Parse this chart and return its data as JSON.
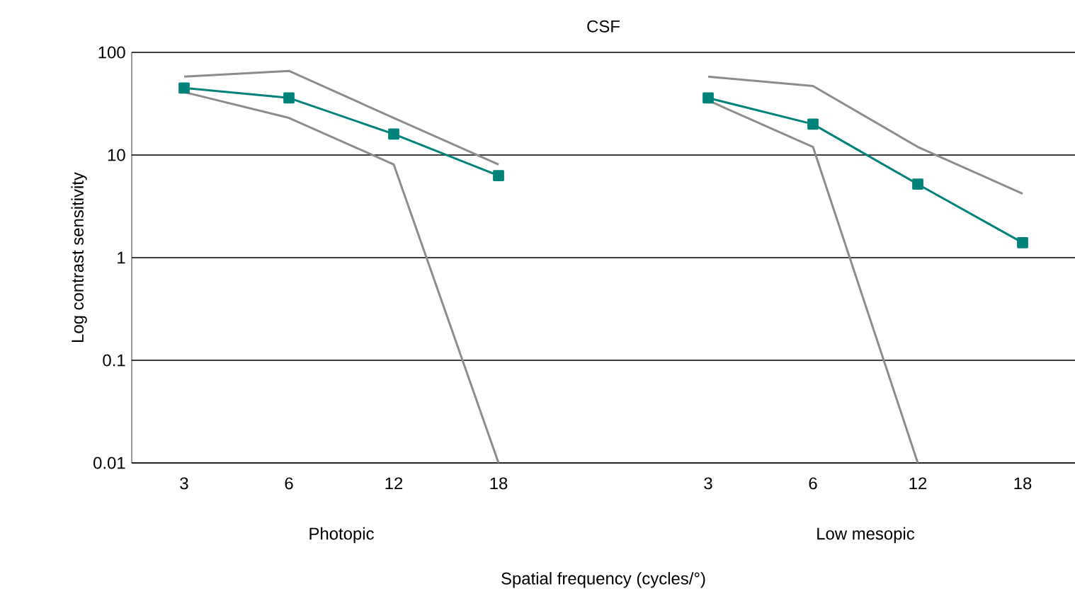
{
  "chart_data": {
    "type": "line",
    "title": "CSF",
    "xlabel": "Spatial frequency (cycles/°)",
    "ylabel": "Log contrast sensitivity",
    "categories": [
      "3",
      "6",
      "12",
      "18",
      null,
      "3",
      "6",
      "12",
      "18"
    ],
    "annotations": [
      "Photopic",
      "Low mesopic"
    ],
    "series": [
      {
        "color": "#8c8c8c",
        "marker": "none",
        "values": [
          58,
          66,
          23,
          8.1,
          null,
          58,
          47,
          12,
          4.2
        ]
      },
      {
        "color": "#8c8c8c",
        "marker": "none",
        "values": [
          41,
          23,
          8.1,
          0.01,
          null,
          34,
          12,
          0.01,
          null
        ]
      },
      {
        "color": "#00827a",
        "marker": "square",
        "values": [
          45,
          36,
          16,
          6.3,
          null,
          36,
          20,
          5.2,
          1.4
        ]
      }
    ],
    "log": "y",
    "ylim": [
      0.01,
      100
    ],
    "yticks": [
      0.01,
      0.1,
      1,
      10,
      100
    ],
    "grid": "y"
  }
}
